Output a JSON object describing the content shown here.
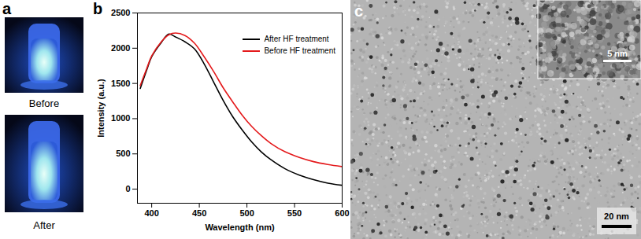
{
  "figure": {
    "panels": [
      {
        "letter": "a",
        "labels": [
          "Before",
          "After"
        ]
      },
      {
        "letter": "b"
      },
      {
        "letter": "c",
        "scale_bar": "20 nm",
        "inset_scale_bar": "5 nm"
      }
    ]
  },
  "chart_data": {
    "type": "line",
    "x_label": "Wavelength (nm)",
    "y_label": "Intensity (a.u.)",
    "xlim": [
      385,
      600
    ],
    "xticks": [
      400,
      450,
      500,
      550,
      600
    ],
    "ylim": [
      -200,
      2500
    ],
    "yticks": [
      0,
      500,
      1000,
      1500,
      2000,
      2500
    ],
    "legend": "upper right",
    "x": [
      388,
      395,
      400,
      410,
      418,
      425,
      435,
      445,
      455,
      465,
      475,
      485,
      495,
      505,
      515,
      525,
      540,
      555,
      570,
      585,
      600
    ],
    "series": [
      {
        "name": "After HF treatment",
        "color": "#000000",
        "values": [
          1430,
          1700,
          1880,
          2080,
          2200,
          2160,
          2090,
          1990,
          1780,
          1520,
          1260,
          1030,
          840,
          670,
          530,
          420,
          290,
          200,
          135,
          85,
          55
        ]
      },
      {
        "name": "Before HF treatment",
        "color": "#e41a1c",
        "values": [
          1470,
          1720,
          1890,
          2090,
          2190,
          2215,
          2180,
          2070,
          1880,
          1670,
          1440,
          1240,
          1050,
          890,
          760,
          650,
          530,
          450,
          390,
          350,
          320
        ]
      }
    ]
  }
}
